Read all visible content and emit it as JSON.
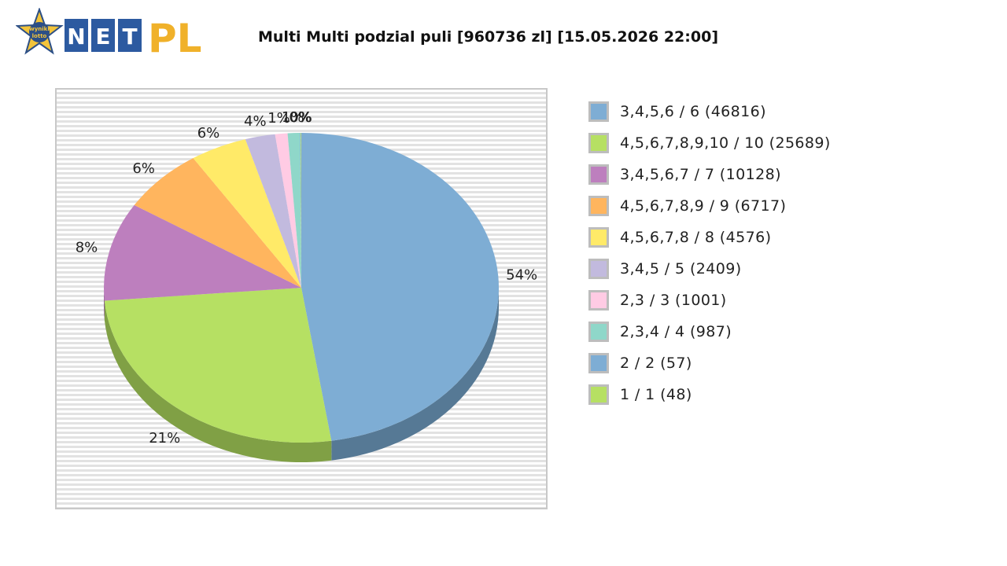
{
  "logo": {
    "badge_text_1": "wyniki",
    "badge_text_2": "lotto",
    "letters": [
      "N",
      "E",
      "T"
    ],
    "suffix": "PL"
  },
  "chart_data": {
    "type": "pie",
    "title": "Multi Multi podzial puli [960736 zl] [15.05.2026 22:00]",
    "slices": [
      {
        "label": "3,4,5,6 / 6 (46816)",
        "value": 46816,
        "pct_label": "54%",
        "color": "#7eadd4",
        "shade": "#567995"
      },
      {
        "label": "4,5,6,7,8,9,10 / 10 (25689)",
        "value": 25689,
        "pct_label": "21%",
        "color": "#b6e063",
        "shade": "#80a045"
      },
      {
        "label": "3,4,5,6,7 / 7 (10128)",
        "value": 10128,
        "pct_label": "8%",
        "color": "#bd7fbe",
        "shade": "#855986"
      },
      {
        "label": "4,5,6,7,8,9 / 9 (6717)",
        "value": 6717,
        "pct_label": "6%",
        "color": "#ffb55e",
        "shade": "#b37f42"
      },
      {
        "label": "4,5,6,7,8 / 8 (4576)",
        "value": 4576,
        "pct_label": "6%",
        "color": "#ffea68",
        "shade": "#b3a449"
      },
      {
        "label": "3,4,5 / 5 (2409)",
        "value": 2409,
        "pct_label": "4%",
        "color": "#c2bade",
        "shade": "#88829b"
      },
      {
        "label": "2,3 / 3 (1001)",
        "value": 1001,
        "pct_label": "1%",
        "color": "#ffcbe4",
        "shade": "#b38ea0"
      },
      {
        "label": "2,3,4 / 4 (987)",
        "value": 987,
        "pct_label": "1%",
        "color": "#8fd7c9",
        "shade": "#64978d"
      },
      {
        "label": "2 / 2 (57)",
        "value": 57,
        "pct_label": "0%",
        "color": "#7eadd4",
        "shade": "#567995"
      },
      {
        "label": "1 / 1 (48)",
        "value": 48,
        "pct_label": "0%",
        "color": "#b6e063",
        "shade": "#80a045"
      }
    ]
  }
}
